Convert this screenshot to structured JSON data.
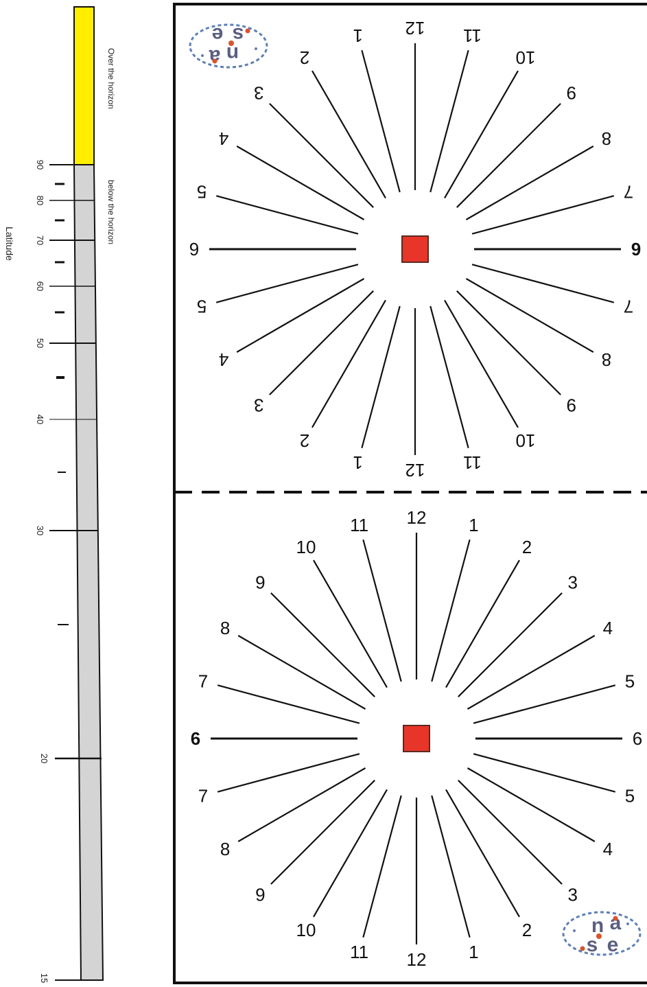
{
  "scale": {
    "axis_title": "Latitude",
    "over_label": "Over the horizon",
    "below_label": "below the horizon",
    "tick_labels": [
      "90",
      "80",
      "70",
      "60",
      "50",
      "40",
      "30",
      "20",
      "15"
    ],
    "colors": {
      "over": "#ffee00",
      "below": "#d4d4d4"
    }
  },
  "dials": {
    "hour_labels_left": [
      "11",
      "10",
      "9",
      "8",
      "7",
      "6",
      "7",
      "8",
      "9",
      "10",
      "11"
    ],
    "hour_labels_right": [
      "1",
      "2",
      "3",
      "4",
      "5",
      "6",
      "5",
      "4",
      "3",
      "2",
      "1"
    ],
    "hour_label_bottom": "12",
    "hour_label_top": "12",
    "gnomon_color": "#e8352a"
  },
  "logo": {
    "text": "nase",
    "colors": {
      "letters": "#5b5f80",
      "dots": "#d9542b",
      "orbit": "#5d7fb7"
    }
  }
}
